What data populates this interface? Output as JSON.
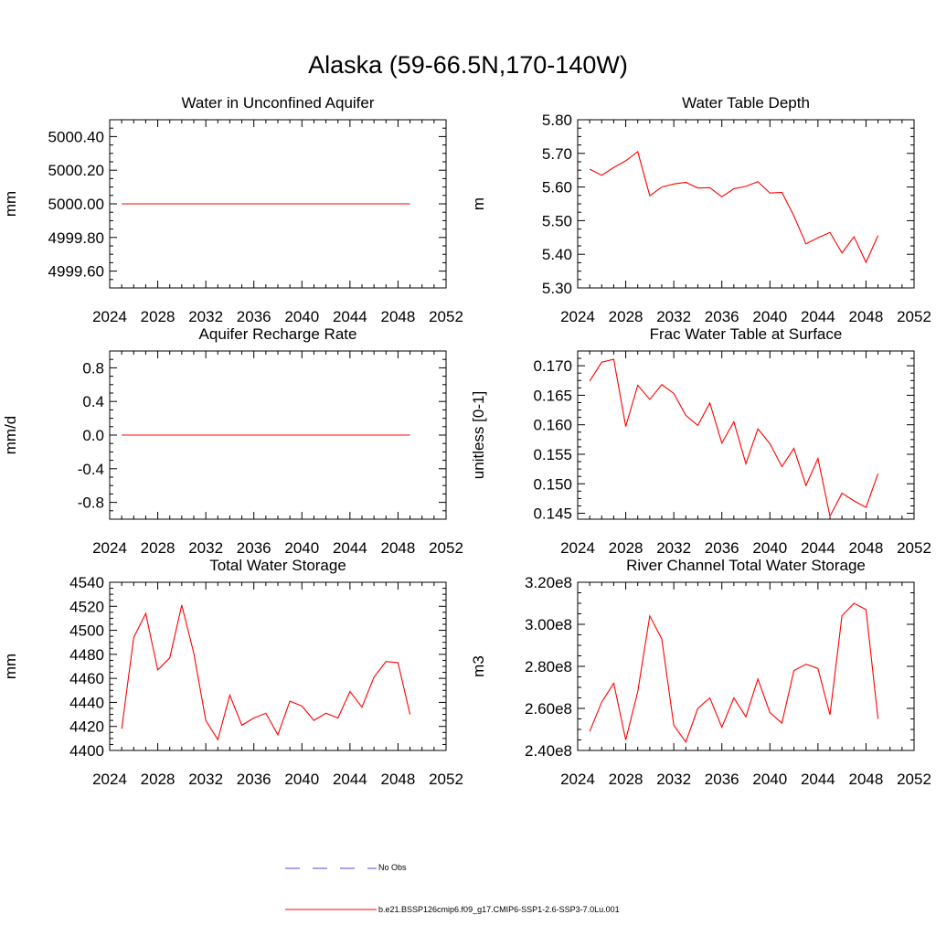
{
  "figure_title": "Alaska (59-66.5N,170-140W)",
  "legend": [
    {
      "label": "No Obs",
      "color": "#4b4bd6",
      "style": "dashed"
    },
    {
      "label": "b.e21.BSSP126cmip6.f09_g17.CMIP6-SSP1-2.6-SSP3-7.0Lu.001",
      "color": "#ff0000",
      "style": "solid"
    }
  ],
  "chart_data": [
    {
      "type": "line",
      "title": "Water in Unconfined Aquifer",
      "xlabel": "",
      "ylabel": "mm",
      "xlim": [
        2024,
        2052
      ],
      "ylim": [
        4999.5,
        5000.5
      ],
      "xticks": [
        2024,
        2028,
        2032,
        2036,
        2040,
        2044,
        2048,
        2052
      ],
      "yticks": [
        4999.6,
        4999.8,
        5000.0,
        5000.2,
        5000.4
      ],
      "ytick_labels": [
        "4999.60",
        "4999.80",
        "5000.00",
        "5000.20",
        "5000.40"
      ],
      "series": [
        {
          "color": "#ff0000",
          "x": [
            2025,
            2026,
            2027,
            2028,
            2029,
            2030,
            2031,
            2032,
            2033,
            2034,
            2035,
            2036,
            2037,
            2038,
            2039,
            2040,
            2041,
            2042,
            2043,
            2044,
            2045,
            2046,
            2047,
            2048,
            2049
          ],
          "y": [
            5000,
            5000,
            5000,
            5000,
            5000,
            5000,
            5000,
            5000,
            5000,
            5000,
            5000,
            5000,
            5000,
            5000,
            5000,
            5000,
            5000,
            5000,
            5000,
            5000,
            5000,
            5000,
            5000,
            5000,
            5000
          ]
        }
      ]
    },
    {
      "type": "line",
      "title": "Water Table Depth",
      "xlabel": "",
      "ylabel": "m",
      "xlim": [
        2024,
        2052
      ],
      "ylim": [
        5.3,
        5.8
      ],
      "xticks": [
        2024,
        2028,
        2032,
        2036,
        2040,
        2044,
        2048,
        2052
      ],
      "yticks": [
        5.3,
        5.4,
        5.5,
        5.6,
        5.7,
        5.8
      ],
      "ytick_labels": [
        "5.30",
        "5.40",
        "5.50",
        "5.60",
        "5.70",
        "5.80"
      ],
      "series": [
        {
          "color": "#ff0000",
          "x": [
            2025,
            2026,
            2027,
            2028,
            2029,
            2030,
            2031,
            2032,
            2033,
            2034,
            2035,
            2036,
            2037,
            2038,
            2039,
            2040,
            2041,
            2042,
            2043,
            2044,
            2045,
            2046,
            2047,
            2048,
            2049
          ],
          "y": [
            5.653,
            5.635,
            5.658,
            5.678,
            5.705,
            5.574,
            5.6,
            5.609,
            5.614,
            5.597,
            5.598,
            5.571,
            5.595,
            5.602,
            5.616,
            5.582,
            5.584,
            5.514,
            5.431,
            5.449,
            5.465,
            5.404,
            5.452,
            5.376,
            5.456
          ]
        }
      ]
    },
    {
      "type": "line",
      "title": "Aquifer Recharge Rate",
      "xlabel": "",
      "ylabel": "mm/d",
      "xlim": [
        2024,
        2052
      ],
      "ylim": [
        -1.0,
        1.0
      ],
      "xticks": [
        2024,
        2028,
        2032,
        2036,
        2040,
        2044,
        2048,
        2052
      ],
      "yticks": [
        -0.8,
        -0.4,
        0.0,
        0.4,
        0.8
      ],
      "ytick_labels": [
        "-0.8",
        "-0.4",
        "0.0",
        "0.4",
        "0.8"
      ],
      "series": [
        {
          "color": "#ff0000",
          "x": [
            2025,
            2026,
            2027,
            2028,
            2029,
            2030,
            2031,
            2032,
            2033,
            2034,
            2035,
            2036,
            2037,
            2038,
            2039,
            2040,
            2041,
            2042,
            2043,
            2044,
            2045,
            2046,
            2047,
            2048,
            2049
          ],
          "y": [
            0,
            0,
            0,
            0,
            0,
            0,
            0,
            0,
            0,
            0,
            0,
            0,
            0,
            0,
            0,
            0,
            0,
            0,
            0,
            0,
            0,
            0,
            0,
            0,
            0
          ]
        }
      ]
    },
    {
      "type": "line",
      "title": "Frac Water Table at Surface",
      "xlabel": "",
      "ylabel": "unitless [0-1]",
      "xlim": [
        2024,
        2052
      ],
      "ylim": [
        0.144,
        0.1725
      ],
      "xticks": [
        2024,
        2028,
        2032,
        2036,
        2040,
        2044,
        2048,
        2052
      ],
      "yticks": [
        0.145,
        0.15,
        0.155,
        0.16,
        0.165,
        0.17
      ],
      "ytick_labels": [
        "0.145",
        "0.150",
        "0.155",
        "0.160",
        "0.165",
        "0.170"
      ],
      "series": [
        {
          "color": "#ff0000",
          "x": [
            2025,
            2026,
            2027,
            2028,
            2029,
            2030,
            2031,
            2032,
            2033,
            2034,
            2035,
            2036,
            2037,
            2038,
            2039,
            2040,
            2041,
            2042,
            2043,
            2044,
            2045,
            2046,
            2047,
            2048,
            2049
          ],
          "y": [
            0.1674,
            0.1706,
            0.1711,
            0.1597,
            0.1667,
            0.1643,
            0.1668,
            0.1653,
            0.1616,
            0.1599,
            0.1637,
            0.1569,
            0.1605,
            0.1534,
            0.1593,
            0.1568,
            0.1529,
            0.156,
            0.1497,
            0.1543,
            0.1445,
            0.1484,
            0.1471,
            0.146,
            0.1517
          ]
        }
      ]
    },
    {
      "type": "line",
      "title": "Total Water Storage",
      "xlabel": "",
      "ylabel": "mm",
      "xlim": [
        2024,
        2052
      ],
      "ylim": [
        4400,
        4540
      ],
      "xticks": [
        2024,
        2028,
        2032,
        2036,
        2040,
        2044,
        2048,
        2052
      ],
      "yticks": [
        4400,
        4420,
        4440,
        4460,
        4480,
        4500,
        4520,
        4540
      ],
      "ytick_labels": [
        "4400",
        "4420",
        "4440",
        "4460",
        "4480",
        "4500",
        "4520",
        "4540"
      ],
      "series": [
        {
          "color": "#ff0000",
          "x": [
            2025,
            2026,
            2027,
            2028,
            2029,
            2030,
            2031,
            2032,
            2033,
            2034,
            2035,
            2036,
            2037,
            2038,
            2039,
            2040,
            2041,
            2042,
            2043,
            2044,
            2045,
            2046,
            2047,
            2048,
            2049
          ],
          "y": [
            4418,
            4494,
            4514,
            4467,
            4477,
            4521,
            4481,
            4425,
            4409,
            4446,
            4421,
            4427,
            4431,
            4413,
            4441,
            4437,
            4425,
            4431,
            4427,
            4449,
            4436,
            4461,
            4474,
            4473,
            4430
          ]
        }
      ]
    },
    {
      "type": "line",
      "title": "River Channel Total Water Storage",
      "xlabel": "",
      "ylabel": "m3",
      "xlim": [
        2024,
        2052
      ],
      "ylim": [
        240000000.0,
        320000000.0
      ],
      "xticks": [
        2024,
        2028,
        2032,
        2036,
        2040,
        2044,
        2048,
        2052
      ],
      "yticks": [
        240000000.0,
        260000000.0,
        280000000.0,
        300000000.0,
        320000000.0
      ],
      "ytick_labels": [
        "2.40e8",
        "2.60e8",
        "2.80e8",
        "3.00e8",
        "3.20e8"
      ],
      "series": [
        {
          "color": "#ff0000",
          "x": [
            2025,
            2026,
            2027,
            2028,
            2029,
            2030,
            2031,
            2032,
            2033,
            2034,
            2035,
            2036,
            2037,
            2038,
            2039,
            2040,
            2041,
            2042,
            2043,
            2044,
            2045,
            2046,
            2047,
            2048,
            2049
          ],
          "y": [
            249000000.0,
            263000000.0,
            272000000.0,
            245000000.0,
            268000000.0,
            304000000.0,
            293000000.0,
            252000000.0,
            244000000.0,
            260000000.0,
            265000000.0,
            251000000.0,
            265000000.0,
            256000000.0,
            274000000.0,
            258000000.0,
            253000000.0,
            278000000.0,
            281000000.0,
            279000000.0,
            257000000.0,
            304000000.0,
            310000000.0,
            307000000.0,
            255000000.0
          ]
        }
      ]
    }
  ]
}
